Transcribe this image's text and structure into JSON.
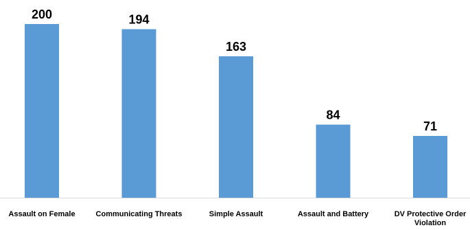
{
  "chart_data": {
    "type": "bar",
    "title": "",
    "xlabel": "",
    "ylabel": "",
    "categories": [
      [
        "Assault on Female"
      ],
      [
        "Communicating Threats"
      ],
      [
        "Simple Assault"
      ],
      [
        "Assault and Battery"
      ],
      [
        "DV Protective Order",
        "Violation"
      ]
    ],
    "values": [
      200,
      194,
      163,
      84,
      71
    ],
    "ylim": [
      0,
      200
    ],
    "grid": false,
    "legend": "none",
    "data_labels": true,
    "bar_color": "#5b9bd5"
  }
}
